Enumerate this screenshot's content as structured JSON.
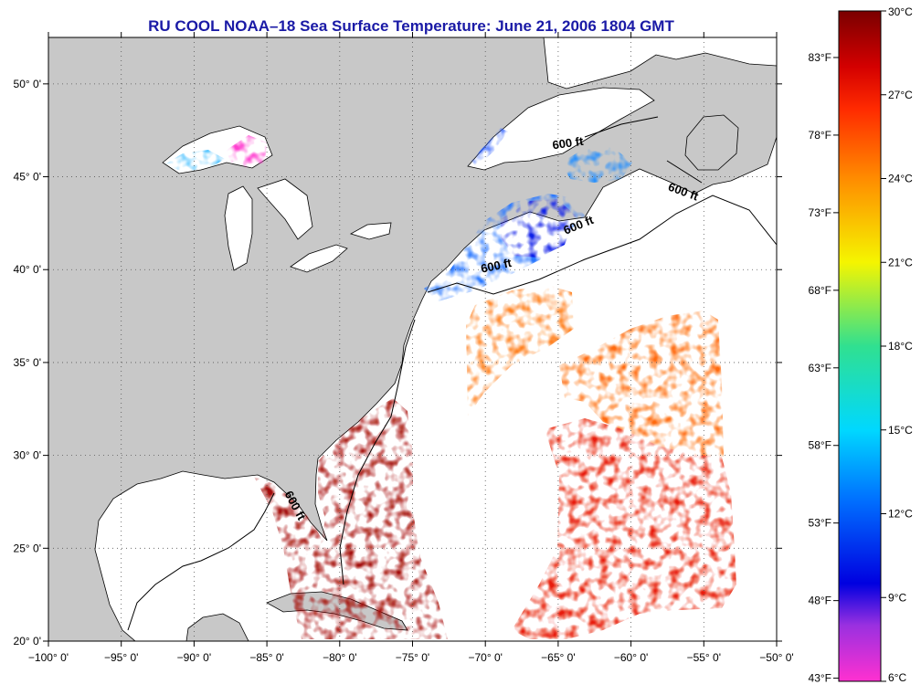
{
  "title": "RU COOL  NOAA–18  Sea Surface Temperature:  June 21, 2006 1804 GMT",
  "title_color": "#1a1aa6",
  "map": {
    "lon_range": [
      -100,
      -50
    ],
    "lat_range": [
      20,
      52.5
    ],
    "lon_ticks": [
      {
        "value": -100,
        "label": "−100° 0'"
      },
      {
        "value": -95,
        "label": "−95° 0'"
      },
      {
        "value": -90,
        "label": "−90° 0'"
      },
      {
        "value": -85,
        "label": "−85° 0'"
      },
      {
        "value": -80,
        "label": "−80° 0'"
      },
      {
        "value": -75,
        "label": "−75° 0'"
      },
      {
        "value": -70,
        "label": "−70° 0'"
      },
      {
        "value": -65,
        "label": "−65° 0'"
      },
      {
        "value": -60,
        "label": "−60° 0'"
      },
      {
        "value": -55,
        "label": "−55° 0'"
      },
      {
        "value": -50,
        "label": "−50° 0'"
      }
    ],
    "lat_ticks": [
      {
        "value": 20,
        "label": "20° 0'"
      },
      {
        "value": 25,
        "label": "25° 0'"
      },
      {
        "value": 30,
        "label": "30° 0'"
      },
      {
        "value": 35,
        "label": "35° 0'"
      },
      {
        "value": 40,
        "label": "40° 0'"
      },
      {
        "value": 45,
        "label": "45° 0'"
      },
      {
        "value": 50,
        "label": "50° 0'"
      }
    ],
    "land_color": "#c8c8c8",
    "ocean_color": "#ffffff",
    "contour_labels": [
      {
        "text": "600 ft",
        "lon": -64.3,
        "lat": 46.6,
        "rotate": -8
      },
      {
        "text": "600 ft",
        "lon": -56.5,
        "lat": 44.0,
        "rotate": 20
      },
      {
        "text": "600 ft",
        "lon": -63.5,
        "lat": 42.2,
        "rotate": -22
      },
      {
        "text": "600 ft",
        "lon": -69.2,
        "lat": 40.0,
        "rotate": -12
      },
      {
        "text": "600 ft",
        "lon": -83.3,
        "lat": 27.2,
        "rotate": 62
      }
    ]
  },
  "colorbar": {
    "celsius": [
      {
        "value": 30,
        "label": "30°C"
      },
      {
        "value": 27,
        "label": "27°C"
      },
      {
        "value": 24,
        "label": "24°C"
      },
      {
        "value": 21,
        "label": "21°C"
      },
      {
        "value": 18,
        "label": "18°C"
      },
      {
        "value": 15,
        "label": "15°C"
      },
      {
        "value": 12,
        "label": "12°C"
      },
      {
        "value": 9,
        "label": "9°C"
      },
      {
        "value": 6,
        "label": "6°C"
      }
    ],
    "fahrenheit": [
      {
        "value": 83,
        "label": "83°F"
      },
      {
        "value": 78,
        "label": "78°F"
      },
      {
        "value": 73,
        "label": "73°F"
      },
      {
        "value": 68,
        "label": "68°F"
      },
      {
        "value": 63,
        "label": "63°F"
      },
      {
        "value": 58,
        "label": "58°F"
      },
      {
        "value": 53,
        "label": "53°F"
      },
      {
        "value": 48,
        "label": "48°F"
      },
      {
        "value": 43,
        "label": "43°F"
      }
    ],
    "color_stops": [
      {
        "c": 30,
        "color": "#7a0000"
      },
      {
        "c": 28,
        "color": "#d40000"
      },
      {
        "c": 26.5,
        "color": "#ff2a00"
      },
      {
        "c": 24,
        "color": "#ff8c00"
      },
      {
        "c": 21,
        "color": "#f5f500"
      },
      {
        "c": 18,
        "color": "#30e090"
      },
      {
        "c": 15,
        "color": "#00d8ff"
      },
      {
        "c": 12.5,
        "color": "#0070ff"
      },
      {
        "c": 9.5,
        "color": "#0000e0"
      },
      {
        "c": 8,
        "color": "#9a30e0"
      },
      {
        "c": 6,
        "color": "#ff30d0"
      }
    ]
  }
}
